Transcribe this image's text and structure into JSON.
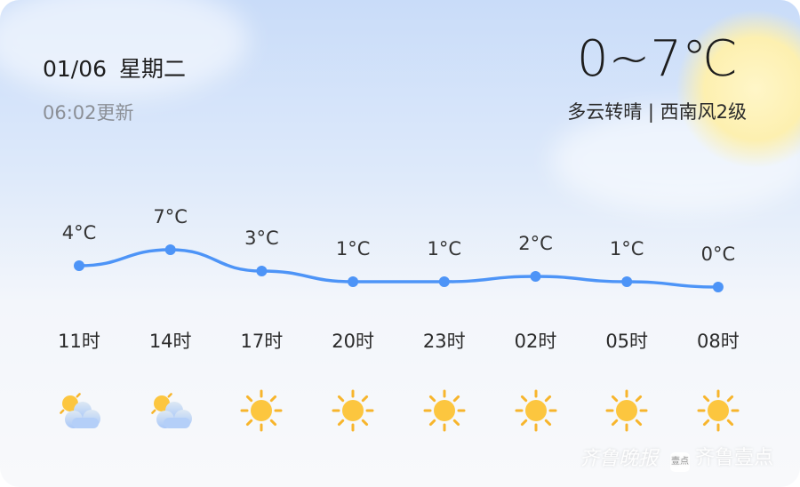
{
  "header": {
    "date": "01/06",
    "weekday": "星期二",
    "updated": "06:02更新",
    "temp_range": "0~7℃",
    "condition": "多云转晴 | 西南风2级"
  },
  "chart_data": {
    "type": "line",
    "categories": [
      "11时",
      "14时",
      "17时",
      "20时",
      "23时",
      "02时",
      "05时",
      "08时"
    ],
    "values": [
      4,
      7,
      3,
      1,
      1,
      2,
      1,
      0
    ],
    "labels": [
      "4°C",
      "7°C",
      "3°C",
      "1°C",
      "1°C",
      "2°C",
      "1°C",
      "0°C"
    ],
    "line_color": "#4d94f7"
  },
  "icons": [
    "partly-cloudy-icon",
    "partly-cloudy-icon",
    "sunny-icon",
    "sunny-icon",
    "sunny-icon",
    "sunny-icon",
    "sunny-icon",
    "sunny-icon"
  ],
  "watermark": {
    "brand1": "齐鲁晚报",
    "badge": "壹点",
    "brand2": "齐鲁壹点"
  }
}
